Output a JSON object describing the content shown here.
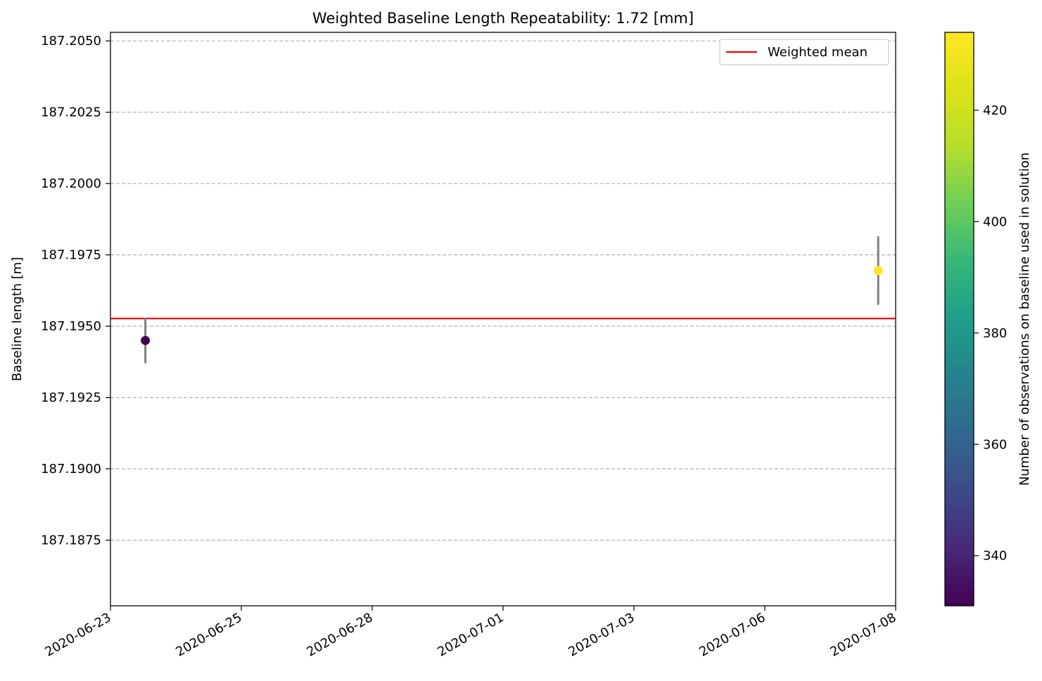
{
  "chart_data": {
    "type": "scatter",
    "title": "Weighted Baseline Length Repeatability: 1.72 [mm]",
    "xlabel": "",
    "ylabel": "Baseline length [m]",
    "x_ticks": [
      "2020-06-23",
      "2020-06-25",
      "2020-06-28",
      "2020-07-01",
      "2020-07-03",
      "2020-07-06",
      "2020-07-08"
    ],
    "y_ticks": [
      "187.1875",
      "187.1900",
      "187.1925",
      "187.1950",
      "187.1975",
      "187.2000",
      "187.2025",
      "187.2050"
    ],
    "xlim": [
      "2020-06-23T00:00",
      "2020-07-08T00:00"
    ],
    "ylim": [
      187.1852,
      187.2053
    ],
    "grid": "y-dashed",
    "legend": {
      "placement": "top-right",
      "entries": [
        "Weighted mean"
      ]
    },
    "weighted_mean": {
      "name": "Weighted mean",
      "value": 187.19527,
      "color": "#ff0000"
    },
    "points": [
      {
        "date": "2020-06-23T16:00",
        "y": 187.1945,
        "err": 0.0008,
        "obs": 331
      },
      {
        "date": "2020-07-07T16:00",
        "y": 187.19695,
        "err": 0.0012,
        "obs": 434
      }
    ],
    "errorbar_color": "#808080",
    "colorbar": {
      "label": "Number of observations on baseline used in solution",
      "colormap": "viridis",
      "range": [
        331,
        434
      ],
      "ticks": [
        "340",
        "360",
        "380",
        "400",
        "420"
      ]
    }
  }
}
